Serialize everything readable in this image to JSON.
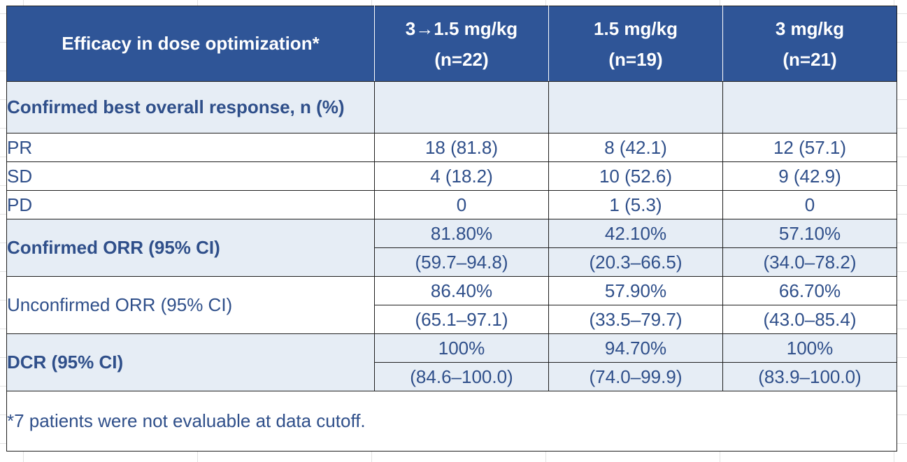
{
  "table": {
    "header": {
      "label": "Efficacy in dose optimization*",
      "columns": [
        {
          "dose": "3→1.5 mg/kg",
          "n": "(n=22)"
        },
        {
          "dose": "1.5 mg/kg",
          "n": "(n=19)"
        },
        {
          "dose": "3 mg/kg",
          "n": "(n=21)"
        }
      ]
    },
    "best_response_section": "Confirmed best overall response, n (%)",
    "rows": {
      "pr": {
        "label": "PR",
        "values": [
          "18 (81.8)",
          "8 (42.1)",
          "12 (57.1)"
        ]
      },
      "sd": {
        "label": "SD",
        "values": [
          "4 (18.2)",
          "10 (52.6)",
          "9 (42.9)"
        ]
      },
      "pd": {
        "label": "PD",
        "values": [
          "0",
          "1 (5.3)",
          "0"
        ]
      }
    },
    "confirmed_orr": {
      "label": "Confirmed ORR (95% CI)",
      "values": [
        "81.80%",
        "42.10%",
        "57.10%"
      ],
      "ci": [
        "(59.7–94.8)",
        "(20.3–66.5)",
        "(34.0–78.2)"
      ]
    },
    "unconfirmed_orr": {
      "label": "Unconfirmed ORR (95% CI)",
      "values": [
        "86.40%",
        "57.90%",
        "66.70%"
      ],
      "ci": [
        "(65.1–97.1)",
        "(33.5–79.7)",
        "(43.0–85.4)"
      ]
    },
    "dcr": {
      "label": "DCR (95% CI)",
      "values": [
        "100%",
        "94.70%",
        "100%"
      ],
      "ci": [
        "(84.6–100.0)",
        "(74.0–99.9)",
        "(83.9–100.0)"
      ]
    },
    "footnote": "*7 patients were not evaluable at data cutoff."
  },
  "colors": {
    "header_bg": "#2f5597",
    "header_text": "#ffffff",
    "body_text": "#2f4f8a",
    "band_bg": "#e6edf5"
  }
}
